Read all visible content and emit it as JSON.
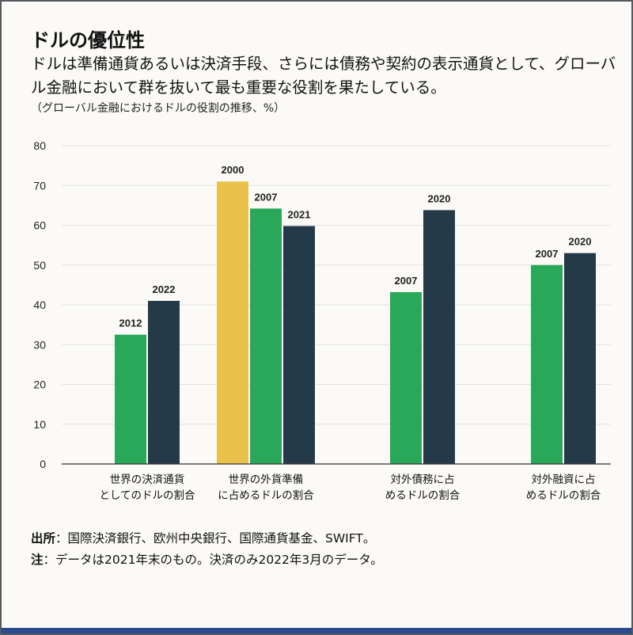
{
  "header": {
    "title": "ドルの優位性",
    "subtitle": "ドルは準備通貨あるいは決済手段、さらには債務や契約の表示通貨として、グローバル金融において群を抜いて最も重要な役割を果たしている。",
    "note": "（グローバル金融におけるドルの役割の推移、%）"
  },
  "footer": {
    "source_label": "出所",
    "source_text": "：国際決済銀行、欧州中央銀行、国際通貨基金、SWIFT。",
    "note_label": "注",
    "note_text": "：データは2021年末のもの。決済のみ2022年3月のデータ。"
  },
  "colors": {
    "green": "#2aa85a",
    "navy": "#243a48",
    "gold": "#e8c24a",
    "grid": "#e2e2e2"
  },
  "chart_data": {
    "type": "bar",
    "title": "ドルの優位性",
    "ylabel": "%",
    "ylim": [
      0,
      80
    ],
    "yticks": [
      0,
      10,
      20,
      30,
      40,
      50,
      60,
      70,
      80
    ],
    "groups": [
      {
        "label_lines": [
          "世界の決済通貨",
          "としてのドルの割合"
        ],
        "bars": [
          {
            "year": "2012",
            "value": 32.5,
            "color": "green"
          },
          {
            "year": "2022",
            "value": 41,
            "color": "navy"
          }
        ]
      },
      {
        "label_lines": [
          "世界の外貨準備",
          "に占めるドルの割合"
        ],
        "bars": [
          {
            "year": "2000",
            "value": 71,
            "color": "gold"
          },
          {
            "year": "2007",
            "value": 64.2,
            "color": "green"
          },
          {
            "year": "2021",
            "value": 59.8,
            "color": "navy"
          }
        ]
      },
      {
        "label_lines": [
          "対外債務に占",
          "めるドルの割合"
        ],
        "bars": [
          {
            "year": "2007",
            "value": 43.2,
            "color": "green"
          },
          {
            "year": "2020",
            "value": 63.8,
            "color": "navy"
          }
        ]
      },
      {
        "label_lines": [
          "対外融資に占",
          "めるドルの割合"
        ],
        "bars": [
          {
            "year": "2007",
            "value": 50,
            "color": "green"
          },
          {
            "year": "2020",
            "value": 53,
            "color": "navy"
          }
        ]
      }
    ]
  }
}
